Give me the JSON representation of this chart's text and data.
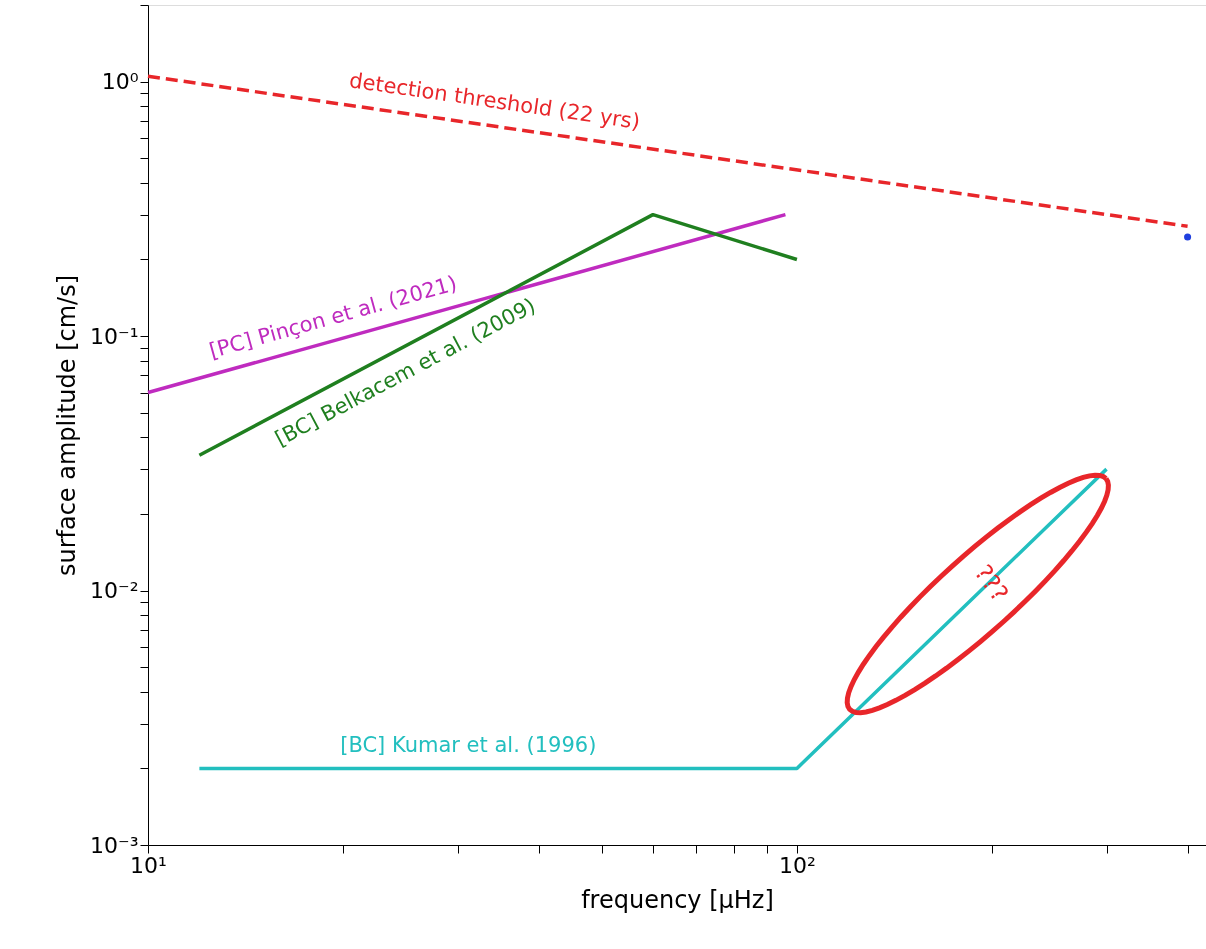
{
  "chart_data": {
    "type": "line",
    "xlabel": "frequency [μHz]",
    "ylabel": "surface amplitude [cm/s]",
    "log": "xy",
    "grid": false,
    "xlim": [
      10,
      427
    ],
    "ylim": [
      0.001,
      2
    ],
    "xticks": [
      {
        "value": 10,
        "label": "10¹"
      },
      {
        "value": 20,
        "label": null
      },
      {
        "value": 30,
        "label": null
      },
      {
        "value": 40,
        "label": null
      },
      {
        "value": 50,
        "label": null
      },
      {
        "value": 60,
        "label": null
      },
      {
        "value": 70,
        "label": null
      },
      {
        "value": 80,
        "label": null
      },
      {
        "value": 90,
        "label": null
      },
      {
        "value": 100,
        "label": "10²"
      },
      {
        "value": 200,
        "label": null
      },
      {
        "value": 300,
        "label": null
      },
      {
        "value": 400,
        "label": null
      }
    ],
    "yticks": [
      {
        "value": 0.001,
        "label": "10⁻³"
      },
      {
        "value": 0.002,
        "label": null
      },
      {
        "value": 0.003,
        "label": null
      },
      {
        "value": 0.004,
        "label": null
      },
      {
        "value": 0.005,
        "label": null
      },
      {
        "value": 0.006,
        "label": null
      },
      {
        "value": 0.007,
        "label": null
      },
      {
        "value": 0.008,
        "label": null
      },
      {
        "value": 0.009,
        "label": null
      },
      {
        "value": 0.01,
        "label": "10⁻²"
      },
      {
        "value": 0.02,
        "label": null
      },
      {
        "value": 0.03,
        "label": null
      },
      {
        "value": 0.04,
        "label": null
      },
      {
        "value": 0.05,
        "label": null
      },
      {
        "value": 0.06,
        "label": null
      },
      {
        "value": 0.07,
        "label": null
      },
      {
        "value": 0.08,
        "label": null
      },
      {
        "value": 0.09,
        "label": null
      },
      {
        "value": 0.1,
        "label": "10⁻¹"
      },
      {
        "value": 0.2,
        "label": null
      },
      {
        "value": 0.3,
        "label": null
      },
      {
        "value": 0.4,
        "label": null
      },
      {
        "value": 0.5,
        "label": null
      },
      {
        "value": 0.6,
        "label": null
      },
      {
        "value": 0.7,
        "label": null
      },
      {
        "value": 0.8,
        "label": null
      },
      {
        "value": 0.9,
        "label": null
      },
      {
        "value": 1,
        "label": "10⁰"
      },
      {
        "value": 2,
        "label": null
      }
    ],
    "series": [
      {
        "name": "detection threshold (22 yrs)",
        "type": "line",
        "line_style": "dashed",
        "color": "#e8262a",
        "x": [
          10,
          400
        ],
        "values": [
          1.05,
          0.27
        ]
      },
      {
        "name": "[PC] Pinçon et al. (2021)",
        "type": "line",
        "line_style": "solid",
        "color": "#bf2bbf",
        "x": [
          10,
          96
        ],
        "values": [
          0.06,
          0.3
        ]
      },
      {
        "name": "[BC] Belkacem et al. (2009)",
        "type": "line",
        "line_style": "solid",
        "color": "#1f7f1f",
        "x": [
          12,
          60,
          100
        ],
        "values": [
          0.034,
          0.3,
          0.2
        ]
      },
      {
        "name": "[BC] Kumar et al. (1996)",
        "type": "line",
        "line_style": "solid",
        "color": "#22bfbf",
        "x": [
          12,
          100,
          300
        ],
        "values": [
          0.002,
          0.002,
          0.03
        ]
      },
      {
        "type": "scatter",
        "marker": "circle",
        "color": "#1f3fdf",
        "x": [
          400
        ],
        "values": [
          0.245
        ]
      }
    ],
    "annotations": [
      {
        "text": "???",
        "x": 190,
        "y": 0.0097
      }
    ]
  }
}
